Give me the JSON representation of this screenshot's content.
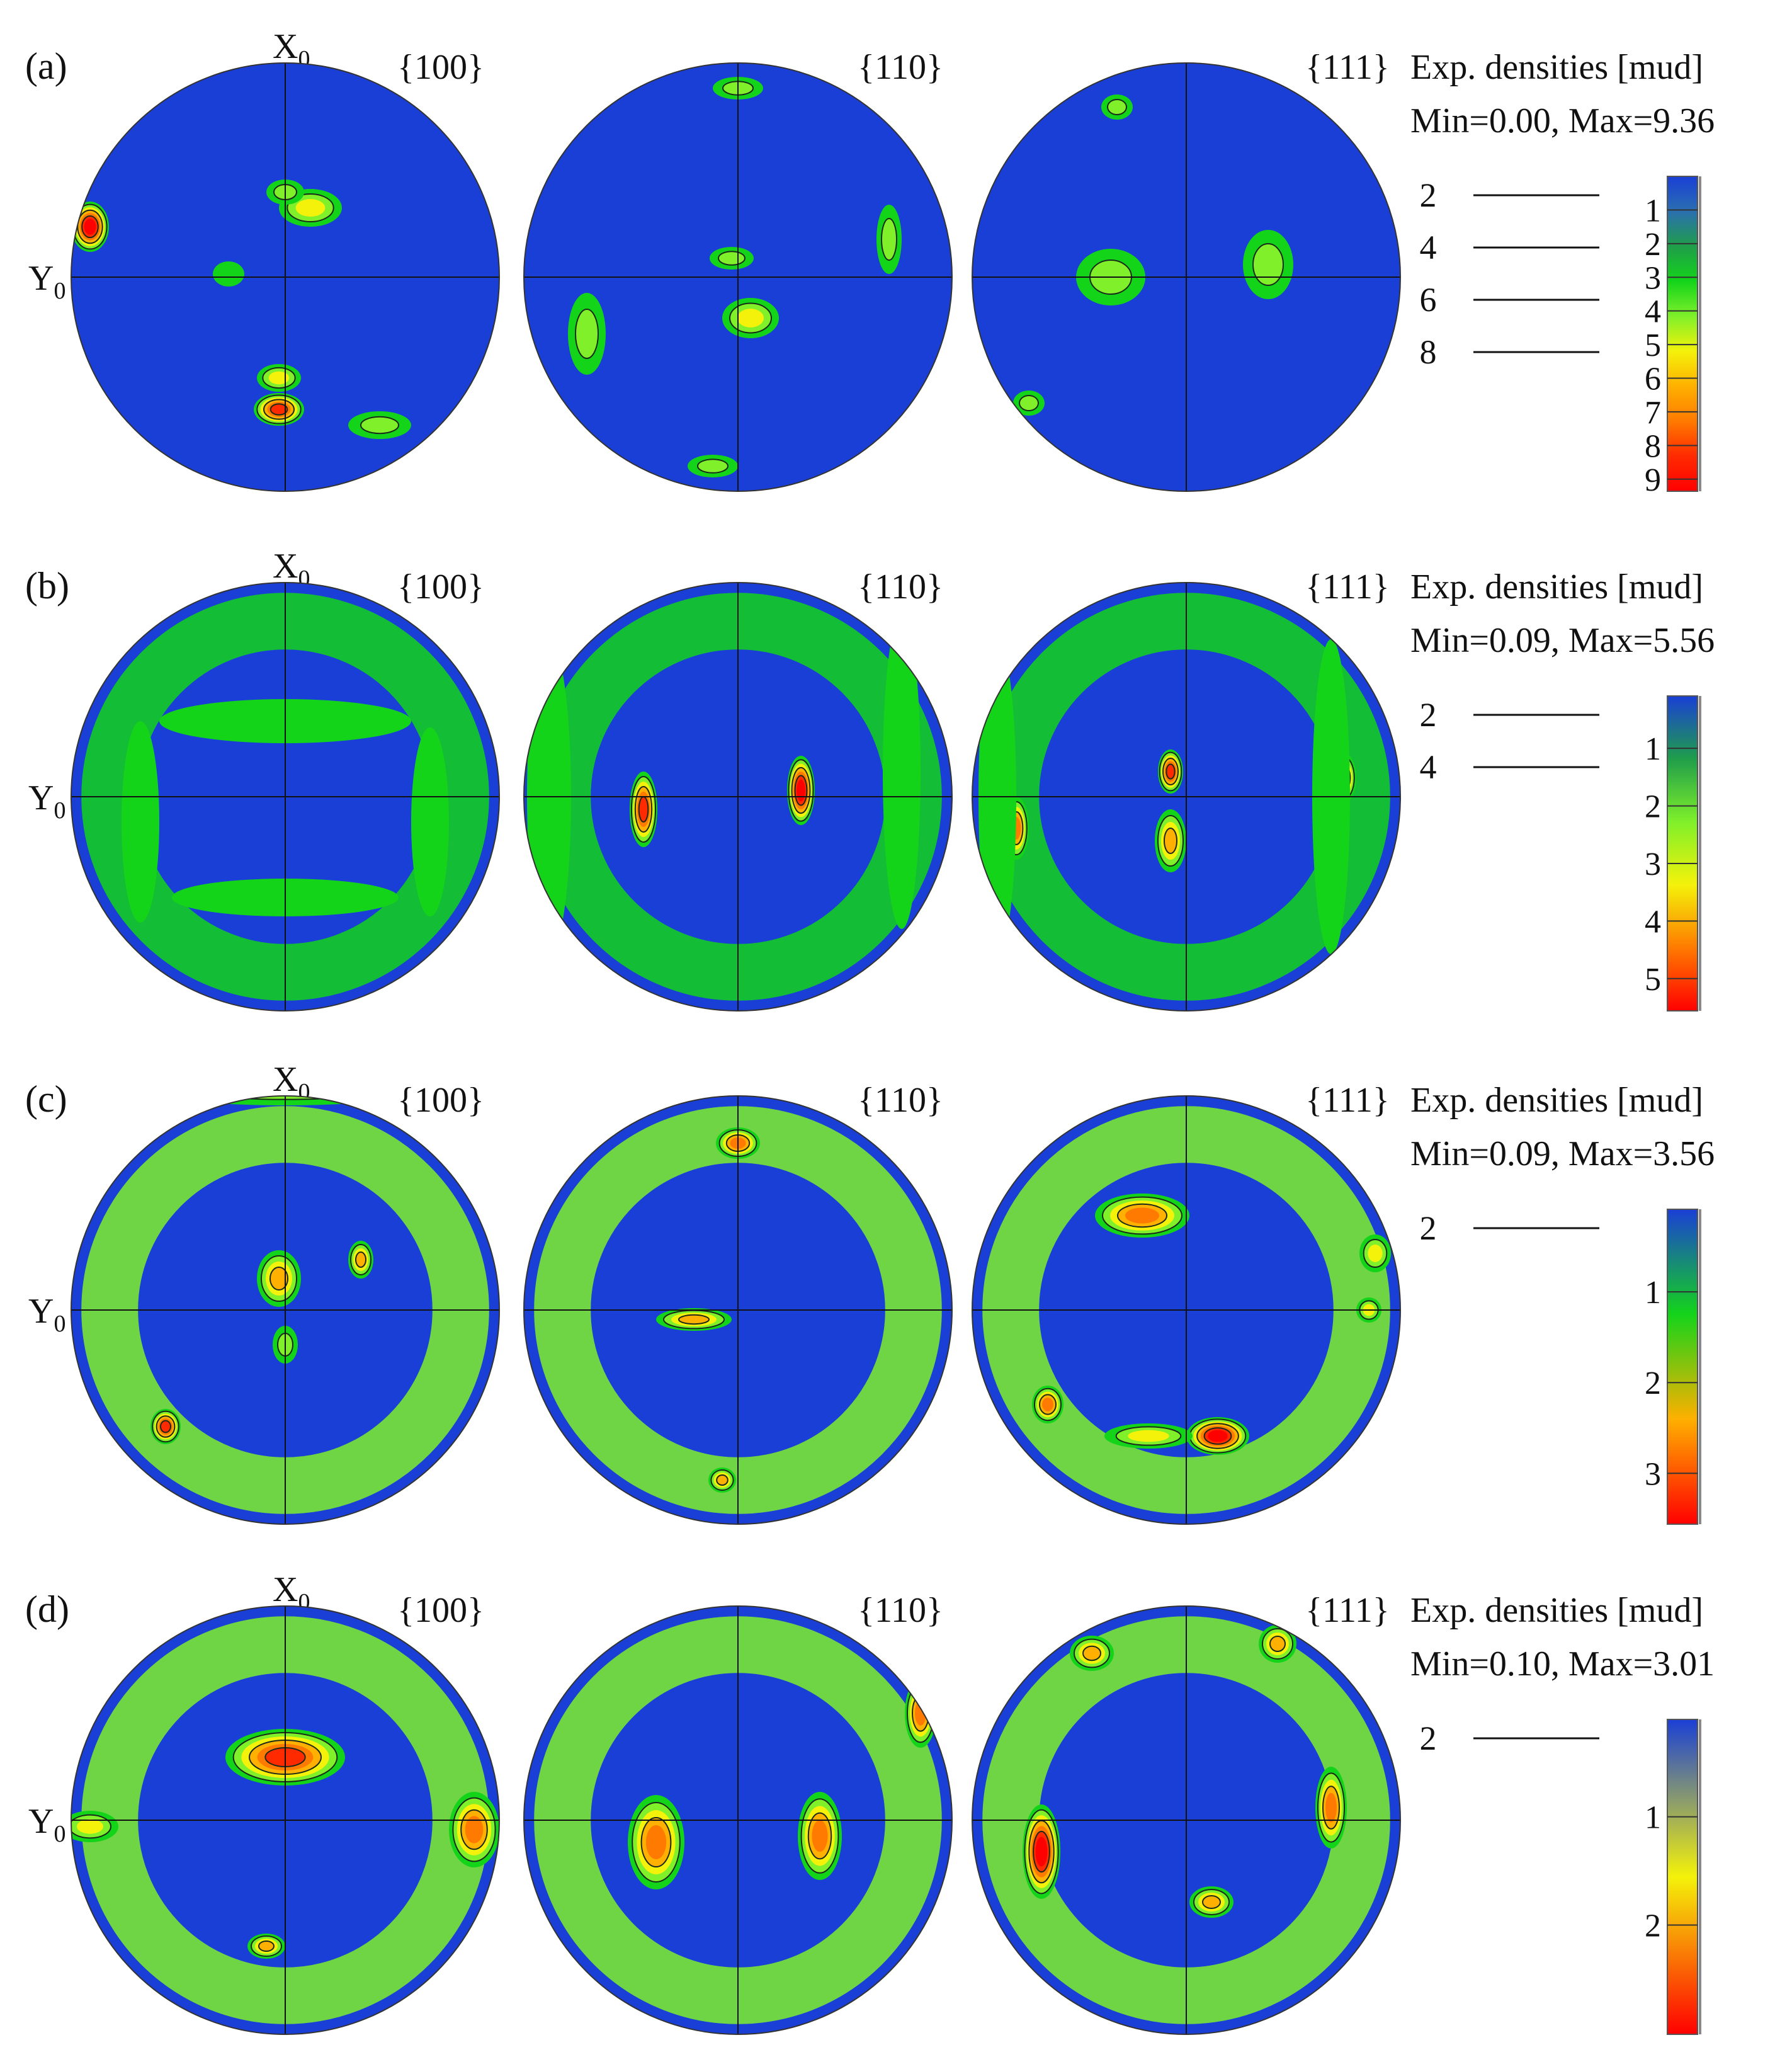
{
  "figure": {
    "axis_x_label": "X",
    "axis_y_label": "Y",
    "axis_subscript": "0",
    "colormap": [
      "#1a3fd6",
      "#2a6fb0",
      "#1f9e4a",
      "#14d41a",
      "#7ff02a",
      "#f4f20a",
      "#ffb000",
      "#ff7a00",
      "#ff2a00",
      "#ff0000"
    ],
    "rows": [
      {
        "label": "(a)",
        "poles": [
          "{100}",
          "{110}",
          "{111}"
        ],
        "legend": {
          "title": "Exp. densities [mud]",
          "range": "Min=0.00, Max=9.36",
          "contour_levels": [
            "2",
            "4",
            "6",
            "8"
          ],
          "colorbar_ticks": [
            "1",
            "2",
            "3",
            "4",
            "5",
            "6",
            "7",
            "8",
            "9"
          ],
          "min": 0.0,
          "max": 9.36
        }
      },
      {
        "label": "(b)",
        "poles": [
          "{100}",
          "{110}",
          "{111}"
        ],
        "legend": {
          "title": "Exp. densities [mud]",
          "range": "Min=0.09, Max=5.56",
          "contour_levels": [
            "2",
            "4"
          ],
          "colorbar_ticks": [
            "1",
            "2",
            "3",
            "4",
            "5"
          ],
          "min": 0.09,
          "max": 5.56
        }
      },
      {
        "label": "(c)",
        "poles": [
          "{100}",
          "{110}",
          "{111}"
        ],
        "legend": {
          "title": "Exp. densities [mud]",
          "range": "Min=0.09, Max=3.56",
          "contour_levels": [
            "2"
          ],
          "colorbar_ticks": [
            "1",
            "2",
            "3"
          ],
          "min": 0.09,
          "max": 3.56
        }
      },
      {
        "label": "(d)",
        "poles": [
          "{100}",
          "{110}",
          "{111}"
        ],
        "legend": {
          "title": "Exp. densities [mud]",
          "range": "Min=0.10, Max=3.01",
          "contour_levels": [
            "2"
          ],
          "colorbar_ticks": [
            "1",
            "2"
          ],
          "min": 0.1,
          "max": 3.01
        }
      }
    ]
  }
}
